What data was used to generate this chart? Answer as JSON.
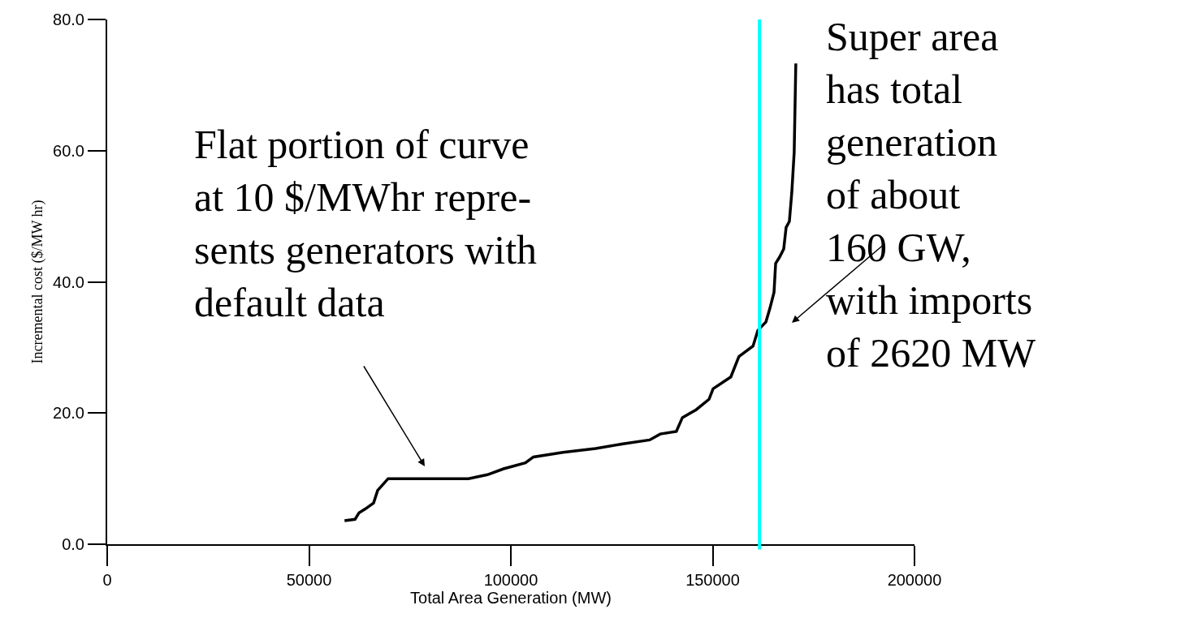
{
  "chart_data": {
    "type": "line",
    "xlabel": "Total Area Generation (MW)",
    "ylabel": "Incremental cost ($/MW hr)",
    "series": [
      {
        "color": "#000000",
        "x": [
          58800,
          61400,
          62400,
          64000,
          66000,
          67000,
          69600,
          89500,
          94200,
          98200,
          103600,
          105600,
          112900,
          121000,
          127800,
          134400,
          137000,
          141000,
          142500,
          145900,
          149100,
          150100,
          154500,
          156500,
          160000,
          161200,
          163200,
          164200,
          165200,
          165600,
          166600,
          167600,
          168200,
          169000,
          169600,
          170200,
          170600
        ],
        "values": [
          3.6,
          3.8,
          4.8,
          5.4,
          6.3,
          8.2,
          10.0,
          10.0,
          10.6,
          11.5,
          12.4,
          13.3,
          14.0,
          14.6,
          15.3,
          15.9,
          16.8,
          17.2,
          19.3,
          20.5,
          22.1,
          23.7,
          25.5,
          28.6,
          30.2,
          32.6,
          33.9,
          36.0,
          38.4,
          42.8,
          43.8,
          45.0,
          48.3,
          49.2,
          53.6,
          59.8,
          73.3
        ]
      }
    ],
    "xlim": [
      0,
      200000
    ],
    "xticks": [
      0,
      50000,
      100000,
      150000,
      200000
    ],
    "ylim": [
      0,
      80
    ],
    "yticks": [
      {
        "value": 0,
        "label": "0.0"
      },
      {
        "value": 20,
        "label": "20.0"
      },
      {
        "value": 40,
        "label": "40.0"
      },
      {
        "value": 60,
        "label": "60.0"
      },
      {
        "value": 80,
        "label": "80.0"
      }
    ],
    "ref_lines": [
      {
        "axis": "x",
        "value": 161600,
        "color": "#00ffff"
      }
    ],
    "annotations": [
      "Flat portion of curve\nat 10 $/MWhr repre-\nsents generators with\ndefault data",
      "Super area\nhas total\ngeneration\nof about\n160 GW,\nwith imports\nof 2620 MW"
    ],
    "marker": "none",
    "line_style": "solid"
  }
}
